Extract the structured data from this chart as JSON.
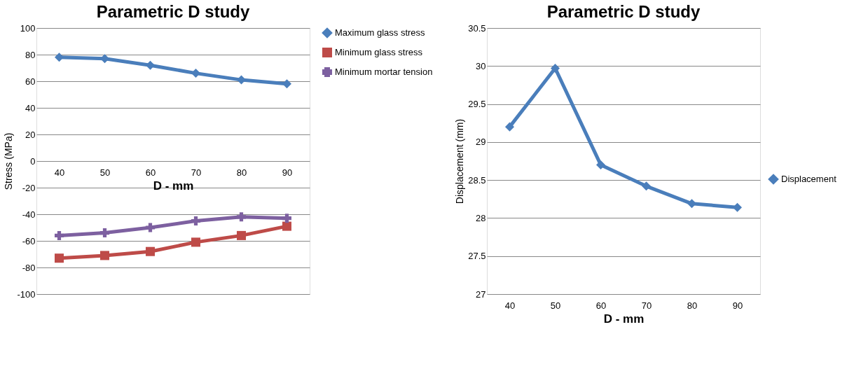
{
  "chart_data": [
    {
      "type": "line",
      "title": "Parametric D study",
      "xlabel": "D - mm",
      "ylabel": "Stress (MPa)",
      "categories": [
        "40",
        "50",
        "60",
        "70",
        "80",
        "90"
      ],
      "ylim": [
        -100,
        100
      ],
      "yticks": [
        -100,
        -80,
        -60,
        -40,
        -20,
        0,
        20,
        40,
        60,
        80,
        100
      ],
      "grid": "y",
      "legend": "top right",
      "series": [
        {
          "name": "Maximum glass stress",
          "color": "#4a7ebb",
          "marker": "diamond",
          "values": [
            78,
            77,
            72,
            66,
            61,
            58
          ]
        },
        {
          "name": "Minimum glass stress",
          "color": "#be4b48",
          "marker": "square",
          "values": [
            -73,
            -71,
            -68,
            -61,
            -56,
            -49
          ]
        },
        {
          "name": "Minimum mortar tension",
          "color": "#7d60a0",
          "marker": "cross",
          "values": [
            -56,
            -54,
            -50,
            -45,
            -42,
            -43
          ]
        }
      ]
    },
    {
      "type": "line",
      "title": "Parametric D study",
      "xlabel": "D - mm",
      "ylabel": "Displacement (mm)",
      "categories": [
        "40",
        "50",
        "60",
        "70",
        "80",
        "90"
      ],
      "ylim": [
        27,
        30.5
      ],
      "yticks": [
        27,
        27.5,
        28,
        28.5,
        29,
        29.5,
        30,
        30.5
      ],
      "grid": "y",
      "legend": "right",
      "series": [
        {
          "name": "Displacement",
          "color": "#4a7ebb",
          "marker": "diamond",
          "values": [
            29.2,
            29.97,
            28.7,
            28.42,
            28.19,
            28.14
          ]
        }
      ]
    }
  ]
}
